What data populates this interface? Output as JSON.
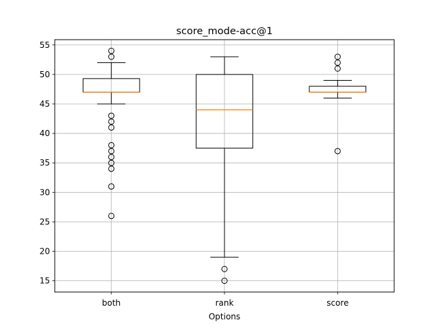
{
  "chart_data": {
    "type": "box",
    "title": "score_mode-acc@1",
    "xlabel": "Options",
    "ylabel": "",
    "ylim": [
      13.1,
      55.9
    ],
    "yticks": [
      15,
      20,
      25,
      30,
      35,
      40,
      45,
      50,
      55
    ],
    "grid": true,
    "categories": [
      "both",
      "rank",
      "score"
    ],
    "boxes": [
      {
        "label": "both",
        "whisker_low": 45,
        "q1": 47,
        "median": 47,
        "q3": 49.3,
        "whisker_high": 52,
        "outliers": [
          54,
          53,
          43,
          42,
          41,
          38,
          37,
          36,
          35,
          34,
          31,
          26
        ]
      },
      {
        "label": "rank",
        "whisker_low": 19,
        "q1": 37.5,
        "median": 44,
        "q3": 50,
        "whisker_high": 53,
        "outliers": [
          17,
          15
        ]
      },
      {
        "label": "score",
        "whisker_low": 46,
        "q1": 47,
        "median": 47,
        "q3": 48,
        "whisker_high": 49,
        "outliers": [
          53,
          52,
          51,
          37
        ]
      }
    ],
    "colors": {
      "box": "#000000",
      "median": "#ff7f0e",
      "grid": "#b0b0b0",
      "outlier_edge": "#000000"
    }
  }
}
